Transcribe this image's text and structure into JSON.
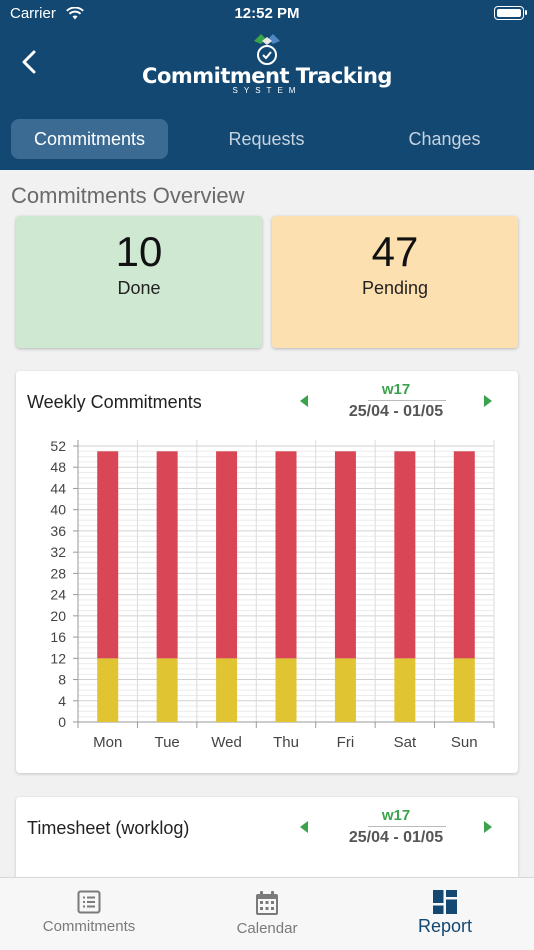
{
  "status_bar": {
    "carrier": "Carrier",
    "time": "12:52 PM"
  },
  "header": {
    "app_title": "Commitment Tracking",
    "app_subtitle": "SYSTEM",
    "tabs": [
      {
        "label": "Commitments",
        "active": true
      },
      {
        "label": "Requests",
        "active": false
      },
      {
        "label": "Changes",
        "active": false
      }
    ]
  },
  "overview": {
    "title": "Commitments Overview",
    "cards": [
      {
        "value": "10",
        "label": "Done",
        "color": "#cfe8d2"
      },
      {
        "value": "47",
        "label": "Pending",
        "color": "#fde0b0"
      }
    ]
  },
  "weekly": {
    "title": "Weekly Commitments",
    "week": "w17",
    "range": "25/04 - 01/05"
  },
  "timesheet": {
    "title": "Timesheet (worklog)",
    "week": "w17",
    "range": "25/04 - 01/05"
  },
  "chart_data": {
    "type": "bar",
    "stacked": true,
    "categories": [
      "Mon",
      "Tue",
      "Wed",
      "Thu",
      "Fri",
      "Sat",
      "Sun"
    ],
    "series": [
      {
        "values": [
          12,
          12,
          12,
          12,
          12,
          12,
          12
        ],
        "color": "#e0c431"
      },
      {
        "values": [
          39,
          39,
          39,
          39,
          39,
          39,
          39
        ],
        "color": "#d94655"
      }
    ],
    "y_ticks": [
      0,
      4,
      8,
      12,
      16,
      20,
      24,
      28,
      32,
      36,
      40,
      44,
      48,
      52
    ],
    "ylim": [
      0,
      52
    ],
    "grid": true,
    "legend": "none"
  },
  "tabbar": {
    "items": [
      {
        "label": "Commitments",
        "icon": "list-icon",
        "active": false
      },
      {
        "label": "Calendar",
        "icon": "calendar-icon",
        "active": false
      },
      {
        "label": "Report",
        "icon": "dashboard-icon",
        "active": true
      }
    ]
  }
}
